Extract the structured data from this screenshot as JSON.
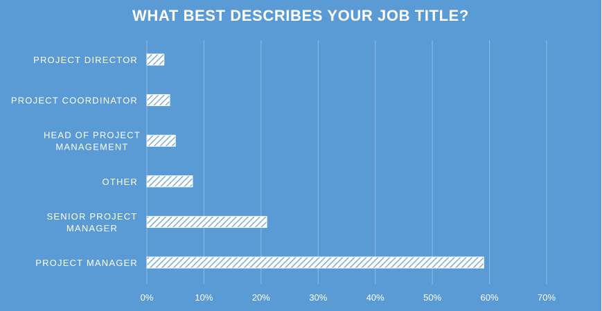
{
  "chart_data": {
    "type": "bar",
    "orientation": "horizontal",
    "title": "WHAT BEST DESCRIBES YOUR JOB TITLE?",
    "categories": [
      "PROJECT DIRECTOR",
      "PROJECT COORDINATOR",
      "HEAD OF PROJECT MANAGEMENT",
      "OTHER",
      "SENIOR PROJECT MANAGER",
      "PROJECT MANAGER"
    ],
    "category_lines": [
      [
        "PROJECT DIRECTOR"
      ],
      [
        "PROJECT COORDINATOR"
      ],
      [
        "HEAD OF PROJECT",
        "MANAGEMENT"
      ],
      [
        "OTHER"
      ],
      [
        "SENIOR PROJECT",
        "MANAGER"
      ],
      [
        "PROJECT MANAGER"
      ]
    ],
    "values": [
      3,
      4,
      5,
      8,
      21,
      59
    ],
    "xlim": [
      0,
      70
    ],
    "xticks": [
      0,
      10,
      20,
      30,
      40,
      50,
      60,
      70
    ],
    "xtick_labels": [
      "0%",
      "10%",
      "20%",
      "30%",
      "40%",
      "50%",
      "60%",
      "70%"
    ],
    "grid": true,
    "legend": "none",
    "colors": {
      "background": "#5b9bd5",
      "bar_fill": "#ffffff",
      "bar_hatch": "#5b9bd5",
      "gridline": "#8fbae3",
      "text": "#ffffff"
    }
  }
}
